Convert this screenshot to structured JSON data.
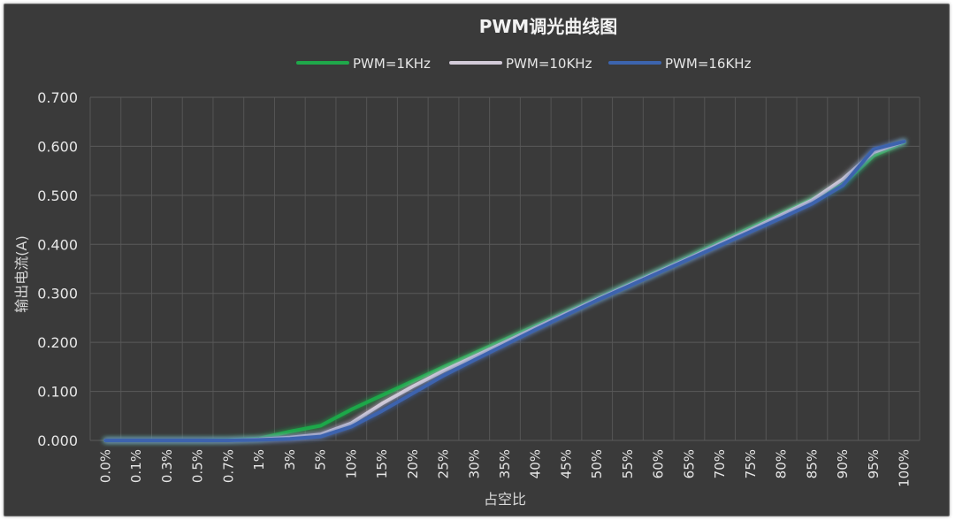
{
  "chart_data": {
    "type": "line",
    "title": "PWM调光曲线图",
    "xlabel": "占空比",
    "ylabel": "输出电流(A)",
    "categories": [
      "0.0%",
      "0.1%",
      "0.3%",
      "0.5%",
      "0.7%",
      "1%",
      "3%",
      "5%",
      "10%",
      "15%",
      "20%",
      "25%",
      "30%",
      "35%",
      "40%",
      "45%",
      "50%",
      "55%",
      "60%",
      "65%",
      "70%",
      "75%",
      "80%",
      "85%",
      "90%",
      "95%",
      "100%"
    ],
    "ylim": [
      0,
      0.7
    ],
    "yticks": [
      "0.000",
      "0.100",
      "0.200",
      "0.300",
      "0.400",
      "0.500",
      "0.600",
      "0.700"
    ],
    "grid": true,
    "legend_position": "top",
    "series": [
      {
        "name": "PWM=1KHz",
        "color": "#1fa84a",
        "values": [
          0.0,
          0.0,
          0.0,
          0.0,
          0.001,
          0.004,
          0.018,
          0.03,
          0.063,
          0.092,
          0.121,
          0.15,
          0.178,
          0.206,
          0.234,
          0.262,
          0.29,
          0.318,
          0.346,
          0.375,
          0.405,
          0.434,
          0.463,
          0.492,
          0.522,
          0.581,
          0.608
        ]
      },
      {
        "name": "PWM=10KHz",
        "color": "#d3cbd9",
        "values": [
          0.0,
          0.0,
          0.0,
          0.0,
          0.0,
          0.002,
          0.006,
          0.012,
          0.035,
          0.075,
          0.11,
          0.142,
          0.171,
          0.2,
          0.23,
          0.259,
          0.288,
          0.316,
          0.344,
          0.372,
          0.401,
          0.43,
          0.46,
          0.49,
          0.533,
          0.588,
          0.61
        ]
      },
      {
        "name": "PWM=16KHz",
        "color": "#3c64ae",
        "values": [
          0.0,
          0.0,
          0.0,
          0.0,
          0.0,
          0.001,
          0.003,
          0.008,
          0.028,
          0.06,
          0.096,
          0.132,
          0.164,
          0.195,
          0.226,
          0.256,
          0.286,
          0.314,
          0.342,
          0.37,
          0.398,
          0.426,
          0.454,
          0.483,
          0.52,
          0.594,
          0.61
        ]
      }
    ]
  }
}
